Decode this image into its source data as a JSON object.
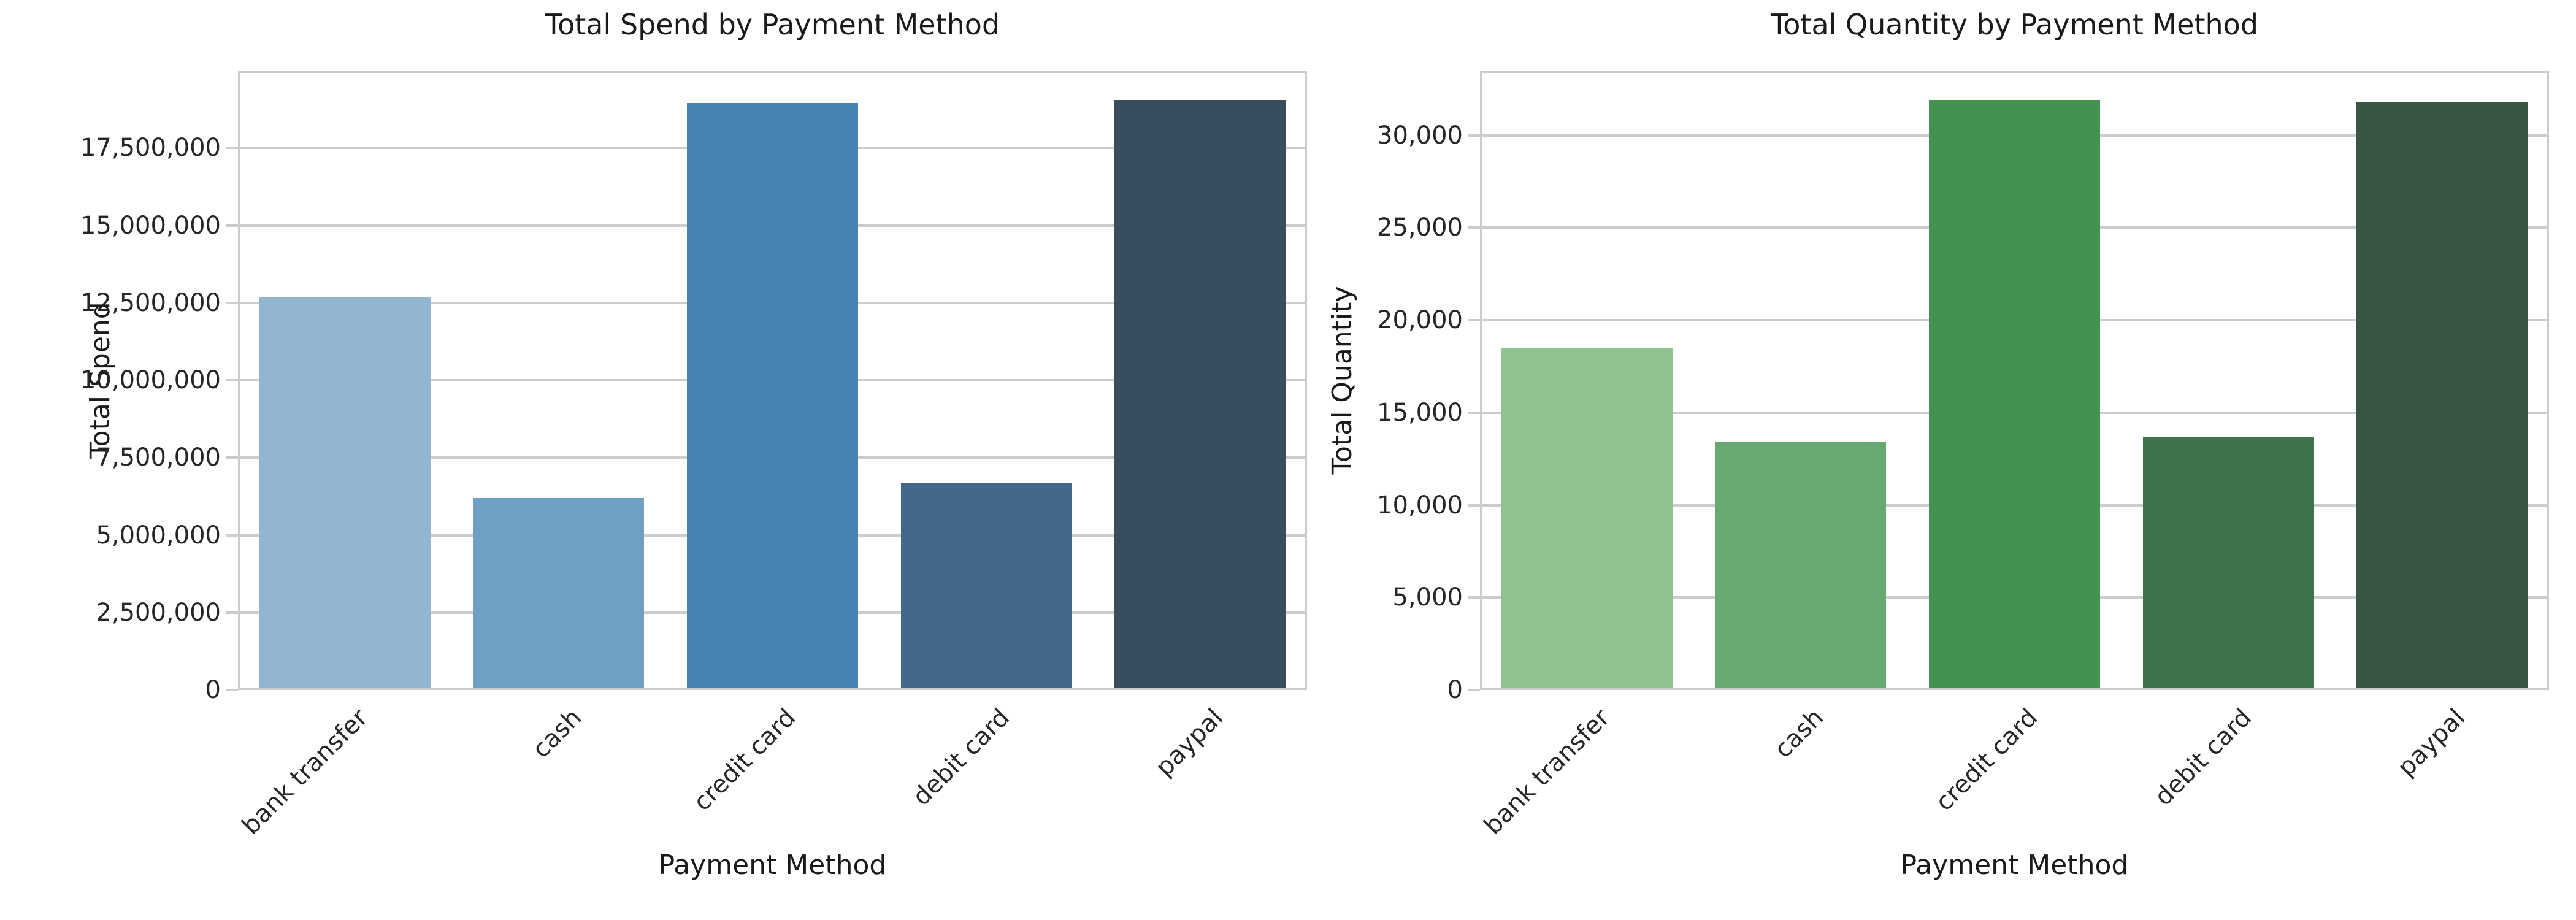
{
  "figure": {
    "background_color": "#ffffff",
    "grid_color": "#cccccc",
    "text_color": "#262626"
  },
  "chart_data": [
    {
      "type": "bar",
      "title": "Total Spend by Payment Method",
      "xlabel": "Payment Method",
      "ylabel": "Total Spend",
      "categories": [
        "bank transfer",
        "cash",
        "credit card",
        "debit card",
        "paypal"
      ],
      "values": [
        12700000,
        6200000,
        18950000,
        6700000,
        19050000
      ],
      "bar_colors": [
        "#92b5d1",
        "#6f9fc2",
        "#4784b4",
        "#41688a",
        "#384d5e"
      ],
      "palette_name": "Blues_d",
      "ylim": [
        0,
        20000000
      ],
      "grid": true,
      "legend": false,
      "xtick_rotation_deg": 45,
      "yticks": [
        {
          "value": 0,
          "label": "0"
        },
        {
          "value": 2500000,
          "label": "2,500,000"
        },
        {
          "value": 5000000,
          "label": "5,000,000"
        },
        {
          "value": 7500000,
          "label": "7,500,000"
        },
        {
          "value": 10000000,
          "label": "10,000,000"
        },
        {
          "value": 12500000,
          "label": "12,500,000"
        },
        {
          "value": 15000000,
          "label": "15,000,000"
        },
        {
          "value": 17500000,
          "label": "17,500,000"
        }
      ]
    },
    {
      "type": "bar",
      "title": "Total Quantity by Payment Method",
      "xlabel": "Payment Method",
      "ylabel": "Total Quantity",
      "categories": [
        "bank transfer",
        "cash",
        "credit card",
        "debit card",
        "paypal"
      ],
      "values": [
        18500,
        13400,
        31900,
        13650,
        31800
      ],
      "bar_colors": [
        "#8fc28f",
        "#67a971",
        "#44924f",
        "#3d744b",
        "#3a5643"
      ],
      "palette_name": "Greens_d",
      "ylim": [
        0,
        33500
      ],
      "grid": true,
      "legend": false,
      "xtick_rotation_deg": 45,
      "yticks": [
        {
          "value": 0,
          "label": "0"
        },
        {
          "value": 5000,
          "label": "5,000"
        },
        {
          "value": 10000,
          "label": "10,000"
        },
        {
          "value": 15000,
          "label": "15,000"
        },
        {
          "value": 20000,
          "label": "20,000"
        },
        {
          "value": 25000,
          "label": "25,000"
        },
        {
          "value": 30000,
          "label": "30,000"
        }
      ]
    }
  ]
}
